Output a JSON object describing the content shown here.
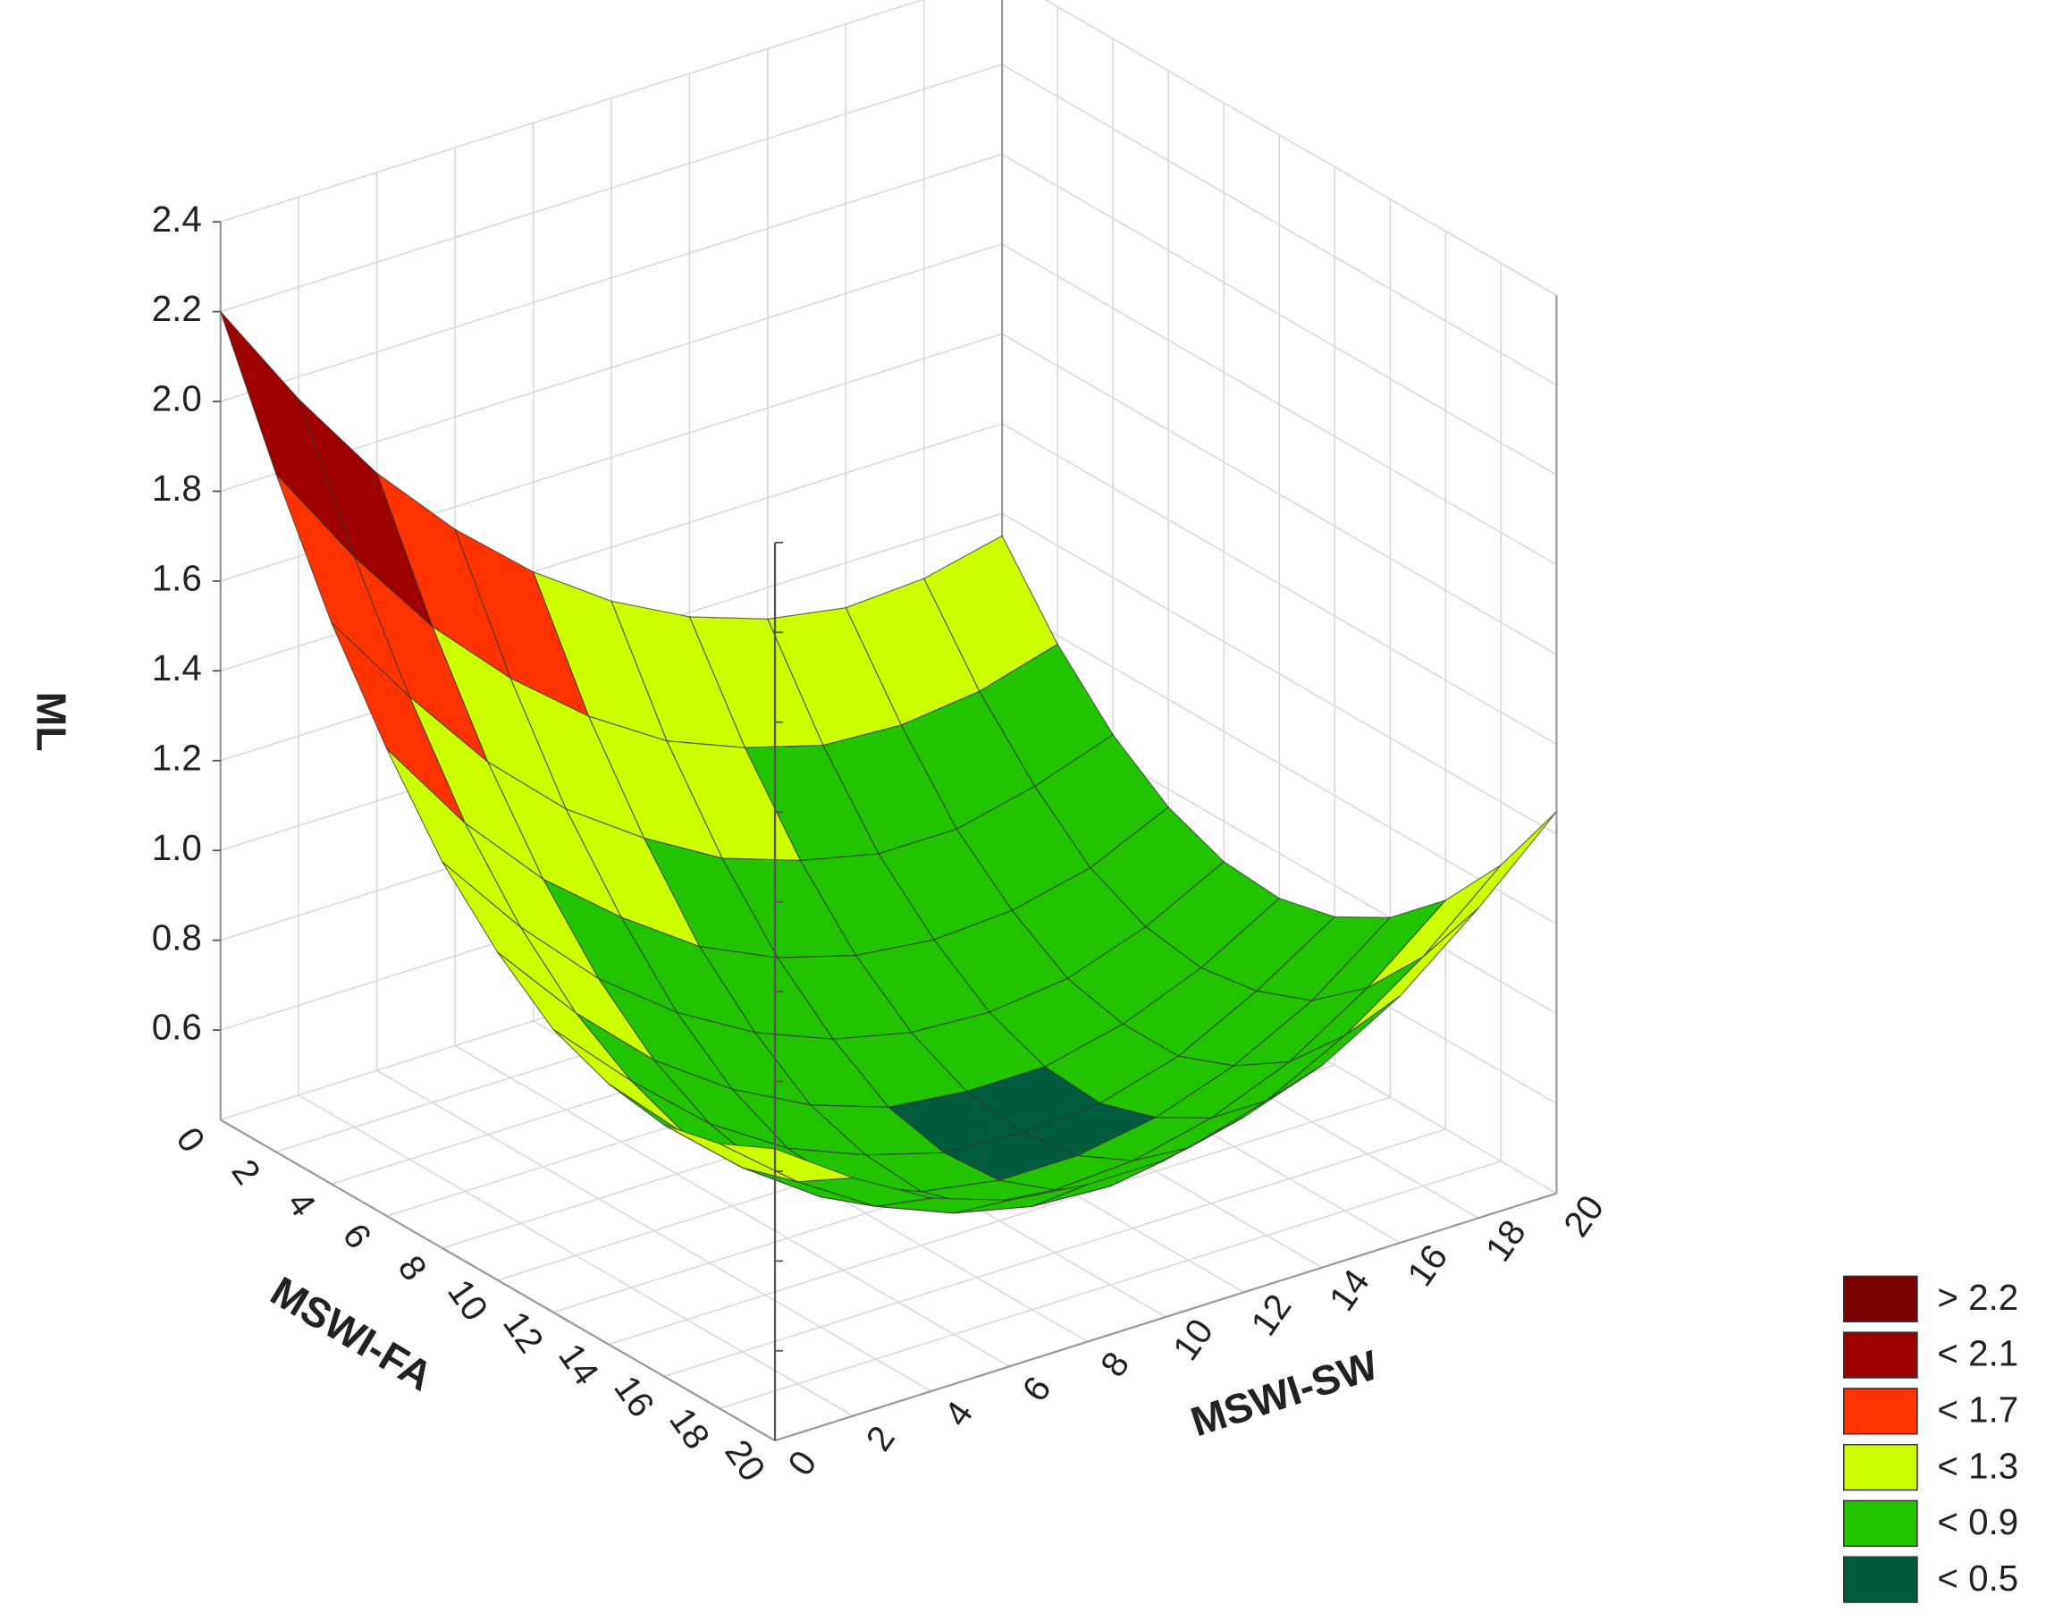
{
  "chart_data": {
    "type": "surface",
    "xlabel": "MSWI-FA",
    "ylabel": "MSWI-SW",
    "zlabel": "ML",
    "x": [
      0,
      2,
      4,
      6,
      8,
      10,
      12,
      14,
      16,
      18,
      20
    ],
    "y": [
      0,
      2,
      4,
      6,
      8,
      10,
      12,
      14,
      16,
      18,
      20
    ],
    "z": [
      [
        2.2,
        1.95,
        1.73,
        1.55,
        1.4,
        1.28,
        1.19,
        1.13,
        1.1,
        1.11,
        1.15
      ],
      [
        1.91,
        1.67,
        1.46,
        1.29,
        1.15,
        1.04,
        0.97,
        0.92,
        0.91,
        0.93,
        0.98
      ],
      [
        1.65,
        1.43,
        1.23,
        1.07,
        0.95,
        0.85,
        0.79,
        0.75,
        0.75,
        0.79,
        0.85
      ],
      [
        1.44,
        1.22,
        1.04,
        0.9,
        0.78,
        0.7,
        0.65,
        0.63,
        0.64,
        0.68,
        0.76
      ],
      [
        1.26,
        1.06,
        0.89,
        0.76,
        0.66,
        0.59,
        0.55,
        0.54,
        0.56,
        0.62,
        0.71
      ],
      [
        1.13,
        0.94,
        0.78,
        0.66,
        0.57,
        0.51,
        0.49,
        0.49,
        0.53,
        0.6,
        0.7
      ],
      [
        1.03,
        0.86,
        0.71,
        0.6,
        0.53,
        0.48,
        0.47,
        0.48,
        0.53,
        0.62,
        0.73
      ],
      [
        0.98,
        0.81,
        0.68,
        0.59,
        0.52,
        0.49,
        0.49,
        0.52,
        0.58,
        0.67,
        0.8
      ],
      [
        0.96,
        0.81,
        0.69,
        0.61,
        0.56,
        0.54,
        0.55,
        0.59,
        0.66,
        0.77,
        0.91
      ],
      [
        0.99,
        0.85,
        0.74,
        0.67,
        0.63,
        0.62,
        0.65,
        0.7,
        0.79,
        0.91,
        1.06
      ],
      [
        1.05,
        0.93,
        0.83,
        0.77,
        0.75,
        0.75,
        0.79,
        0.85,
        0.95,
        1.09,
        1.25
      ]
    ],
    "xlim": [
      0,
      20
    ],
    "ylim": [
      0,
      20
    ],
    "zlim": [
      0.4,
      2.4
    ],
    "xticks": [
      0,
      2,
      4,
      6,
      8,
      10,
      12,
      14,
      16,
      18,
      20
    ],
    "yticks": [
      0,
      2,
      4,
      6,
      8,
      10,
      12,
      14,
      16,
      18,
      20
    ],
    "zticks": [
      0.6,
      0.8,
      {
        "value": 1.0,
        "label": "1.0"
      },
      1.2,
      1.4,
      1.6,
      1.8,
      {
        "value": 2.0,
        "label": "2.0"
      },
      2.2,
      2.4
    ],
    "grid": true,
    "legend_position": "lower right",
    "legend": [
      {
        "label": "> 2.2",
        "value": 2.2,
        "color": "#7a0000"
      },
      {
        "label": "< 2.1",
        "value": 2.1,
        "color": "#9e0000"
      },
      {
        "label": "< 1.7",
        "value": 1.7,
        "color": "#ff3300"
      },
      {
        "label": "< 1.3",
        "value": 1.3,
        "color": "#ccff00"
      },
      {
        "label": "< 0.9",
        "value": 0.9,
        "color": "#22c400"
      },
      {
        "label": "< 0.5",
        "value": 0.5,
        "color": "#005c3c"
      }
    ]
  }
}
